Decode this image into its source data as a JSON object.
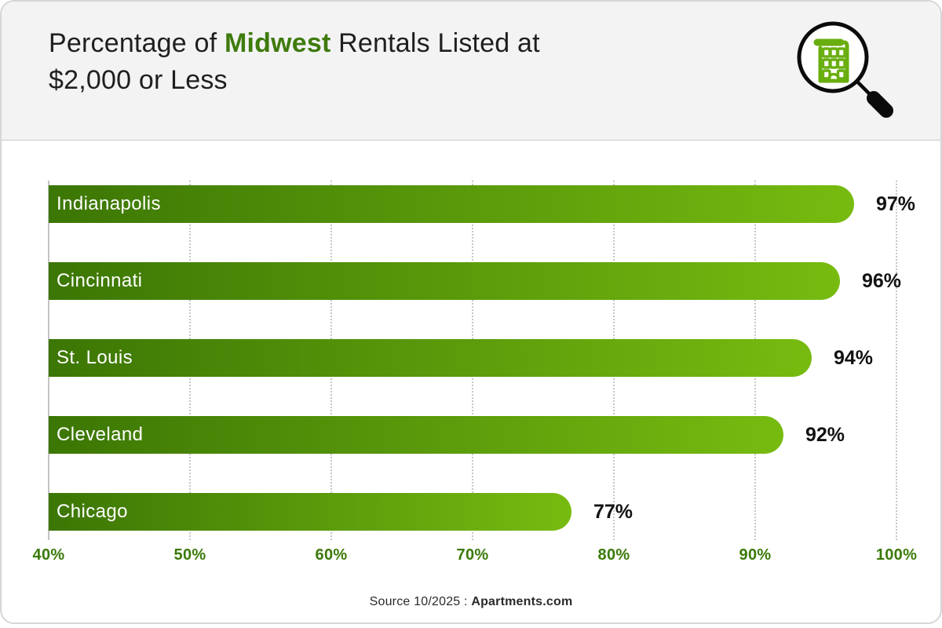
{
  "header": {
    "title_line1_prefix": "Percentage of ",
    "title_highlight": "Midwest",
    "title_line1_suffix": " Rentals Listed at",
    "title_line2": "$2,000 or Less",
    "icon": "magnifier-over-green-building"
  },
  "chart_data": {
    "type": "bar",
    "orientation": "horizontal",
    "title": "Percentage of Midwest Rentals Listed at $2,000 or Less",
    "categories": [
      "Indianapolis",
      "Cincinnati",
      "St. Louis",
      "Cleveland",
      "Chicago"
    ],
    "values": [
      97,
      96,
      94,
      92,
      77
    ],
    "value_labels": [
      "97%",
      "96%",
      "94%",
      "92%",
      "77%"
    ],
    "xlim": [
      40,
      100
    ],
    "x_ticks": [
      "40%",
      "50%",
      "60%",
      "70%",
      "80%",
      "90%",
      "100%"
    ],
    "grid": "vertical dotted gridlines at every 10% tick, solid line at 40%",
    "legend": "none",
    "bar_gradient_start": "#3C7604",
    "bar_gradient_end": "#77BB10"
  },
  "footer": {
    "source_prefix": "Source 10/2025 : ",
    "source_name": "Apartments.com"
  },
  "colors": {
    "header_bg": "#F3F3F4",
    "card_border": "#D6D6D6",
    "title_text": "#1F1F1F",
    "accent_green_dark": "#3E7B0C",
    "axis_label_green": "#3A7A08",
    "grid_line": "#C7C7C7",
    "bar_label_text": "#FFFFFF",
    "value_text": "#121212"
  }
}
